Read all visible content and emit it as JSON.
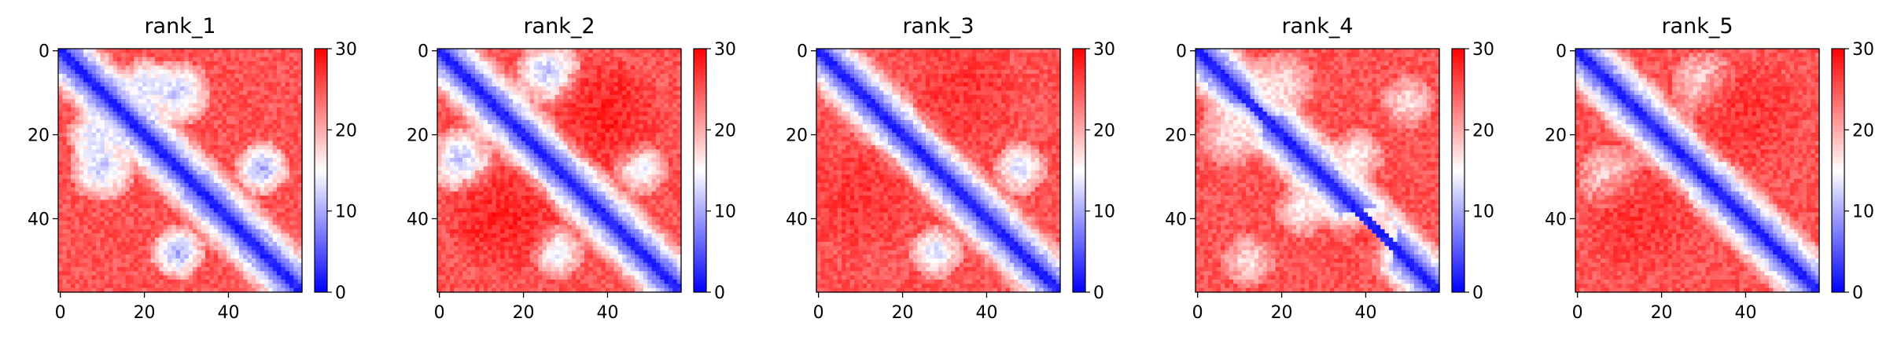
{
  "chart_data": [
    {
      "type": "heatmap",
      "title": "rank_1",
      "xticks": [
        "0",
        "20",
        "40"
      ],
      "yticks": [
        "0",
        "20",
        "40"
      ],
      "colorbar": {
        "ticks": [
          "0",
          "10",
          "20",
          "30"
        ],
        "range": [
          0,
          30
        ]
      },
      "grid_size": 58,
      "blobs": [
        {
          "cx": 10,
          "cy": 28,
          "r": 5,
          "v": 12
        },
        {
          "cx": 28,
          "cy": 10,
          "r": 5,
          "v": 12
        },
        {
          "cx": 48,
          "cy": 28,
          "r": 4,
          "v": 10
        },
        {
          "cx": 28,
          "cy": 48,
          "r": 4,
          "v": 10
        },
        {
          "cx": 20,
          "cy": 8,
          "r": 4,
          "v": 13
        },
        {
          "cx": 8,
          "cy": 20,
          "r": 4,
          "v": 13
        }
      ]
    },
    {
      "type": "heatmap",
      "title": "rank_2",
      "xticks": [
        "0",
        "20",
        "40"
      ],
      "yticks": [
        "0",
        "20",
        "40"
      ],
      "colorbar": {
        "ticks": [
          "0",
          "10",
          "20",
          "30"
        ],
        "range": [
          0,
          30
        ]
      },
      "grid_size": 58,
      "blobs": [
        {
          "cx": 26,
          "cy": 5,
          "r": 5,
          "v": 12
        },
        {
          "cx": 5,
          "cy": 26,
          "r": 5,
          "v": 12
        },
        {
          "cx": 48,
          "cy": 28,
          "r": 4,
          "v": 14
        },
        {
          "cx": 28,
          "cy": 48,
          "r": 4,
          "v": 14
        },
        {
          "cx": 40,
          "cy": 15,
          "r": 8,
          "v": 28
        },
        {
          "cx": 15,
          "cy": 40,
          "r": 8,
          "v": 28
        }
      ]
    },
    {
      "type": "heatmap",
      "title": "rank_3",
      "xticks": [
        "0",
        "20",
        "40"
      ],
      "yticks": [
        "0",
        "20",
        "40"
      ],
      "colorbar": {
        "ticks": [
          "0",
          "10",
          "20",
          "30"
        ],
        "range": [
          0,
          30
        ]
      },
      "grid_size": 58,
      "blobs": [
        {
          "cx": 48,
          "cy": 28,
          "r": 4,
          "v": 13
        },
        {
          "cx": 28,
          "cy": 48,
          "r": 4,
          "v": 13
        },
        {
          "cx": 35,
          "cy": 10,
          "r": 8,
          "v": 27
        },
        {
          "cx": 10,
          "cy": 35,
          "r": 8,
          "v": 27
        }
      ]
    },
    {
      "type": "heatmap",
      "title": "rank_4",
      "xticks": [
        "0",
        "20",
        "40"
      ],
      "yticks": [
        "0",
        "20",
        "40"
      ],
      "colorbar": {
        "ticks": [
          "0",
          "10",
          "20",
          "30"
        ],
        "range": [
          0,
          30
        ]
      },
      "grid_size": 58,
      "blobs": [
        {
          "cx": 50,
          "cy": 12,
          "r": 4,
          "v": 17
        },
        {
          "cx": 12,
          "cy": 50,
          "r": 4,
          "v": 17
        },
        {
          "cx": 38,
          "cy": 25,
          "r": 4,
          "v": 16
        },
        {
          "cx": 25,
          "cy": 38,
          "r": 4,
          "v": 16
        },
        {
          "cx": 20,
          "cy": 8,
          "r": 5,
          "v": 17
        },
        {
          "cx": 8,
          "cy": 20,
          "r": 5,
          "v": 17
        },
        {
          "cx": 40,
          "cy": 45,
          "r": 5,
          "v": 26
        }
      ]
    },
    {
      "type": "heatmap",
      "title": "rank_5",
      "xticks": [
        "0",
        "20",
        "40"
      ],
      "yticks": [
        "0",
        "20",
        "40"
      ],
      "colorbar": {
        "ticks": [
          "0",
          "10",
          "20",
          "30"
        ],
        "range": [
          0,
          30
        ]
      },
      "grid_size": 58,
      "blobs": [
        {
          "cx": 8,
          "cy": 30,
          "r": 5,
          "v": 17
        },
        {
          "cx": 30,
          "cy": 8,
          "r": 5,
          "v": 17
        },
        {
          "cx": 40,
          "cy": 15,
          "r": 8,
          "v": 27
        },
        {
          "cx": 15,
          "cy": 40,
          "r": 8,
          "v": 27
        }
      ]
    }
  ],
  "colors": {
    "low": "#0000ff",
    "mid": "#ffffff",
    "high": "#ff0000"
  }
}
